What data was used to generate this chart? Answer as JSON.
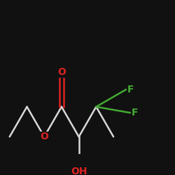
{
  "background_color": "#111111",
  "bond_color": "#d8d8d8",
  "bond_width": 1.8,
  "O_color": "#dd2222",
  "F_color": "#44aa33",
  "OH_color": "#dd2222",
  "figsize": [
    2.5,
    2.5
  ],
  "dpi": 100,
  "xlim": [
    -1.5,
    8.5
  ],
  "ylim": [
    -2.5,
    5.5
  ],
  "font_size": 10
}
